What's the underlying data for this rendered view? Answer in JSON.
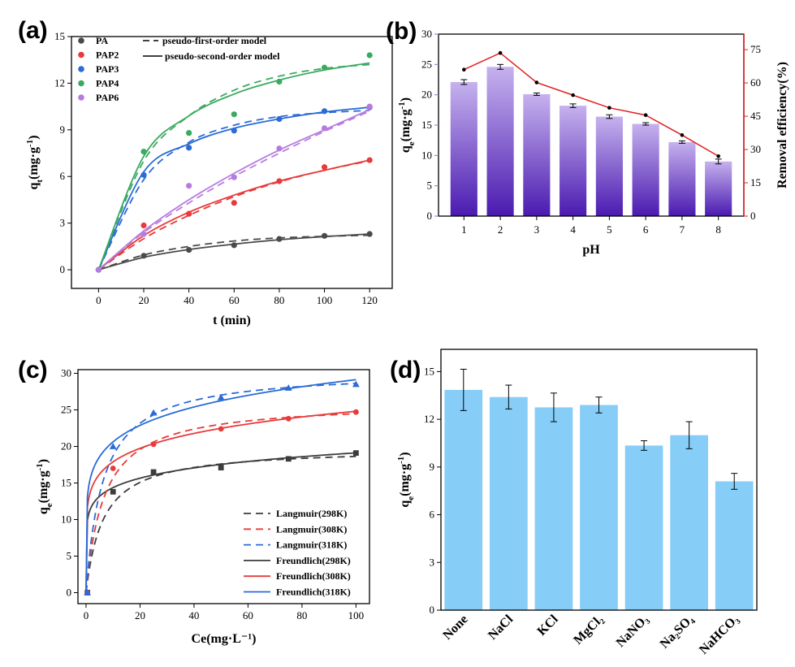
{
  "chart_data": [
    {
      "panel": "(a)",
      "type": "scatter",
      "xlabel": "t (min)",
      "ylabel": "qt(mg·g⁻¹)",
      "xlim": [
        -12,
        130
      ],
      "ylim": [
        -1.2,
        15
      ],
      "xticks": [
        0,
        20,
        40,
        60,
        80,
        100,
        120
      ],
      "yticks": [
        0,
        3,
        6,
        9,
        12,
        15
      ],
      "legend_position": "top-left",
      "model_legend": [
        "pseudo-first-order model",
        "pseudo-second-order model"
      ],
      "x": [
        0,
        20,
        40,
        60,
        80,
        100,
        120
      ],
      "series": [
        {
          "name": "PA",
          "color": "#4a4a4a",
          "values": [
            0,
            0.9,
            1.28,
            1.58,
            1.98,
            2.18,
            2.3
          ],
          "pfo": [
            0,
            0.95,
            1.5,
            1.85,
            2.05,
            2.15,
            2.22
          ],
          "pso": [
            0,
            0.8,
            1.3,
            1.65,
            1.93,
            2.13,
            2.3
          ]
        },
        {
          "name": "PAP2",
          "color": "#e83a3a",
          "values": [
            0,
            2.85,
            3.6,
            4.3,
            5.7,
            6.6,
            7.05
          ],
          "pfo": [
            0,
            2.0,
            3.5,
            4.7,
            5.65,
            6.4,
            7.0
          ],
          "pso": [
            0,
            2.2,
            3.7,
            4.8,
            5.7,
            6.4,
            7.05
          ]
        },
        {
          "name": "PAP3",
          "color": "#2a6bd6",
          "values": [
            0,
            6.1,
            7.85,
            8.95,
            9.7,
            10.2,
            10.45
          ],
          "pfo": [
            0,
            5.8,
            8.2,
            9.3,
            9.85,
            10.1,
            10.25
          ],
          "pso": [
            0,
            6.3,
            8.1,
            9.1,
            9.7,
            10.15,
            10.45
          ]
        },
        {
          "name": "PAP4",
          "color": "#3aaa60",
          "values": [
            0,
            7.6,
            8.8,
            10.0,
            12.1,
            13.0,
            13.8
          ],
          "pfo": [
            0,
            7.0,
            9.9,
            11.55,
            12.45,
            12.95,
            13.2
          ],
          "pso": [
            0,
            7.3,
            9.9,
            11.3,
            12.2,
            12.85,
            13.3
          ]
        },
        {
          "name": "PAP6",
          "color": "#b77be0",
          "values": [
            0,
            2.3,
            5.4,
            5.95,
            7.8,
            9.1,
            10.5
          ],
          "pfo": [
            0,
            2.4,
            4.3,
            6.0,
            7.5,
            8.9,
            10.2
          ],
          "pso": [
            0,
            2.5,
            4.5,
            6.2,
            7.7,
            9.0,
            10.3
          ]
        }
      ]
    },
    {
      "panel": "(b)",
      "type": "bar",
      "xlabel": "pH",
      "ylabel": "qe(mg·g⁻¹)",
      "ylabel_right": "Removal efficiency(%)",
      "categories": [
        "1",
        "2",
        "3",
        "4",
        "5",
        "6",
        "7",
        "8"
      ],
      "values": [
        22.1,
        24.6,
        20.1,
        18.2,
        16.4,
        15.2,
        12.2,
        9.0
      ],
      "errors": [
        0.4,
        0.4,
        0.2,
        0.3,
        0.3,
        0.2,
        0.2,
        0.4
      ],
      "ylim": [
        0,
        30
      ],
      "yticks": [
        0,
        5,
        10,
        15,
        20,
        25,
        30
      ],
      "right_ylim": [
        0,
        82
      ],
      "right_yticks": [
        0,
        15,
        30,
        45,
        60,
        75
      ],
      "removal_efficiency": [
        66,
        73.5,
        60.2,
        54.5,
        48.8,
        45.5,
        36.5,
        27
      ],
      "bar_color_top": "#c6b2ee",
      "bar_color_bottom": "#4a1ab0",
      "line_color": "#e02020"
    },
    {
      "panel": "(c)",
      "type": "scatter",
      "xlabel": "Ce(mg·L⁻¹)",
      "ylabel": "qe(mg·g⁻¹)",
      "xlim": [
        -3,
        105
      ],
      "ylim": [
        -1.5,
        30.5
      ],
      "xticks": [
        0,
        20,
        40,
        60,
        80,
        100
      ],
      "yticks": [
        0,
        5,
        10,
        15,
        20,
        25,
        30
      ],
      "legend_position": "bottom-right",
      "legend": [
        "Langmuir(298K)",
        "Langmuir(308K)",
        "Langmuir(318K)",
        "Freundlich(298K)",
        "Freundlich(308K)",
        "Freundlich(318K)"
      ],
      "series": [
        {
          "name": "298K",
          "color": "#3c3c3c",
          "marker": "square",
          "x": [
            0.5,
            10,
            25,
            50,
            75,
            100
          ],
          "y": [
            0,
            13.8,
            16.5,
            17.1,
            18.3,
            19.1
          ],
          "langmuir_qm": 19.8,
          "langmuir_k": 0.16,
          "freund_k": 10.8,
          "freund_n": 0.124
        },
        {
          "name": "308K",
          "color": "#e83a3a",
          "marker": "circle",
          "x": [
            0.5,
            10,
            25,
            50,
            75,
            100
          ],
          "y": [
            0,
            17.0,
            20.3,
            22.4,
            23.8,
            24.7
          ],
          "langmuir_qm": 26.1,
          "langmuir_k": 0.15,
          "freund_k": 12.9,
          "freund_n": 0.142
        },
        {
          "name": "318K",
          "color": "#2a6bd6",
          "marker": "triangle",
          "x": [
            0.5,
            10,
            25,
            50,
            75,
            100
          ],
          "y": [
            0,
            20.0,
            24.6,
            26.7,
            28.0,
            28.5
          ],
          "langmuir_qm": 30.4,
          "langmuir_k": 0.16,
          "freund_k": 14.6,
          "freund_n": 0.15
        }
      ]
    },
    {
      "panel": "(d)",
      "type": "bar",
      "ylabel": "qe(mg·g⁻¹)",
      "categories": [
        "None",
        "NaCl",
        "KCl",
        "MgCl₂",
        "NaNO₃",
        "Na₂SO₄",
        "NaHCO₃"
      ],
      "values": [
        13.85,
        13.4,
        12.75,
        12.9,
        10.35,
        11.0,
        8.1
      ],
      "errors": [
        1.3,
        0.75,
        0.9,
        0.5,
        0.3,
        0.85,
        0.5
      ],
      "ylim": [
        0,
        16.4
      ],
      "yticks": [
        0,
        3,
        6,
        9,
        12,
        15
      ],
      "bar_color": "#86cdf8"
    }
  ]
}
